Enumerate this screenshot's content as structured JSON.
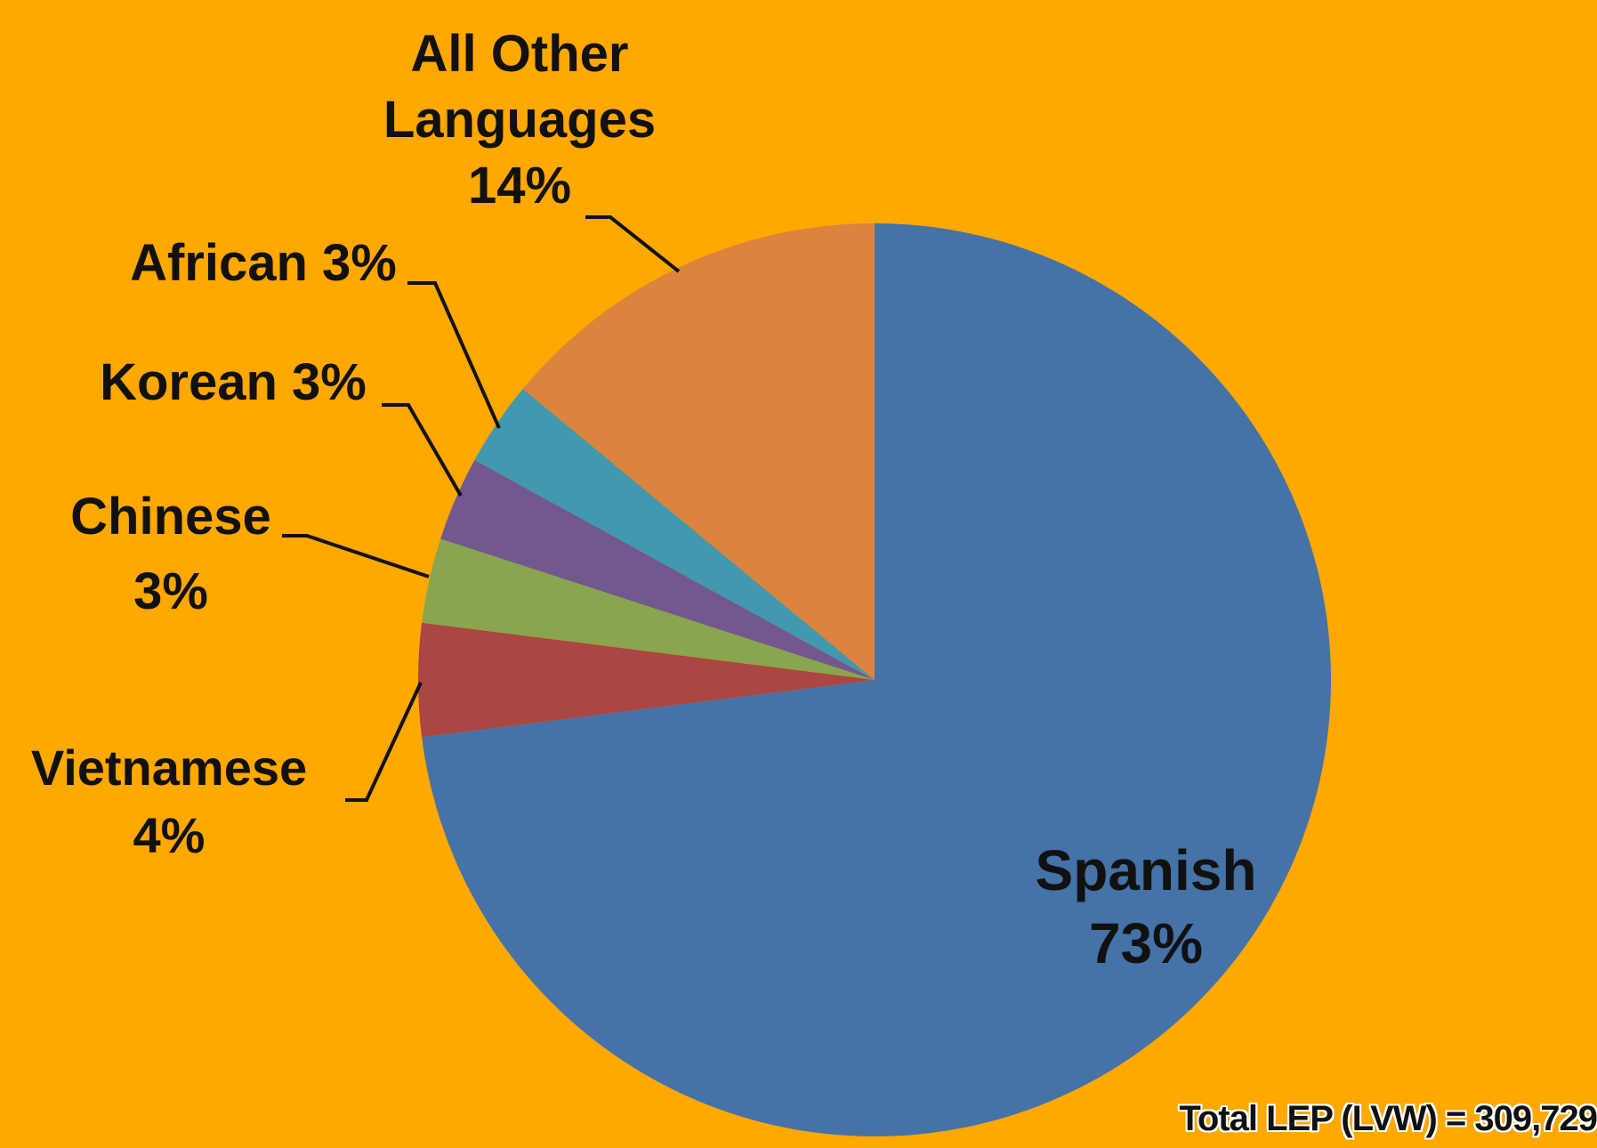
{
  "chart_data": {
    "type": "pie",
    "start_angle": "12 o'clock",
    "direction": "clockwise",
    "slices": [
      {
        "label_lines": [
          "Spanish",
          "73%"
        ],
        "value": 73,
        "color": "#4572A7"
      },
      {
        "label_lines": [
          "Vietnamese",
          "4%"
        ],
        "value": 4,
        "color": "#AA4643"
      },
      {
        "label_lines": [
          "Chinese",
          "3%"
        ],
        "value": 3,
        "color": "#89A54E"
      },
      {
        "label_lines": [
          "Korean 3%"
        ],
        "value": 3,
        "color": "#71588F"
      },
      {
        "label_lines": [
          "African 3%"
        ],
        "value": 3,
        "color": "#4198AF"
      },
      {
        "label_lines": [
          "All Other",
          "Languages",
          "14%"
        ],
        "value": 14,
        "color": "#DB843D"
      }
    ],
    "background_color": "#FFA800",
    "leader_line_color": "#111111",
    "annotation": "Total LEP (LVW) = 309,729"
  }
}
